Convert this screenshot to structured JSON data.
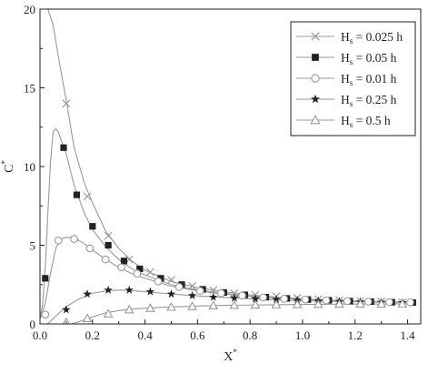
{
  "chart_data": {
    "type": "line",
    "xlabel": "X",
    "xlabel_sup": "*",
    "ylabel": "C",
    "ylabel_sup": "*",
    "xlim": [
      0.0,
      1.45
    ],
    "ylim": [
      0,
      20
    ],
    "xticks": [
      0.0,
      0.2,
      0.4,
      0.6,
      0.8,
      1.0,
      1.2,
      1.4
    ],
    "xtick_labels": [
      "0.0",
      "0.2",
      "0.4",
      "0.6",
      "0.8",
      "1.0",
      "1.2",
      "1.4"
    ],
    "yticks": [
      0,
      5,
      10,
      15,
      20
    ],
    "ytick_labels": [
      "0",
      "5",
      "10",
      "15",
      "20"
    ],
    "grid": false,
    "legend_position": "top-right",
    "line_color": "#999999",
    "marker_color": "#222222",
    "series": [
      {
        "name": "H",
        "name_sub": "s",
        "name_rest": " = 0.025 h",
        "marker": "x",
        "curve": [
          [
            0.0,
            20
          ],
          [
            0.03,
            20
          ],
          [
            0.05,
            19
          ],
          [
            0.075,
            16.5
          ],
          [
            0.1,
            14.2
          ],
          [
            0.13,
            11.2
          ],
          [
            0.17,
            8.9
          ],
          [
            0.2,
            7.7
          ],
          [
            0.25,
            5.9
          ],
          [
            0.3,
            4.8
          ],
          [
            0.35,
            4.0
          ],
          [
            0.4,
            3.4
          ],
          [
            0.5,
            2.7
          ],
          [
            0.6,
            2.3
          ],
          [
            0.7,
            2.05
          ],
          [
            0.8,
            1.85
          ],
          [
            0.9,
            1.7
          ],
          [
            1.0,
            1.6
          ],
          [
            1.1,
            1.52
          ],
          [
            1.2,
            1.46
          ],
          [
            1.3,
            1.41
          ],
          [
            1.42,
            1.37
          ]
        ],
        "markers": [
          [
            0.1,
            14.0
          ],
          [
            0.18,
            8.1
          ],
          [
            0.26,
            5.6
          ],
          [
            0.34,
            4.1
          ],
          [
            0.42,
            3.3
          ],
          [
            0.5,
            2.8
          ],
          [
            0.58,
            2.4
          ],
          [
            0.66,
            2.15
          ],
          [
            0.74,
            1.95
          ],
          [
            0.82,
            1.85
          ],
          [
            0.9,
            1.75
          ],
          [
            0.98,
            1.65
          ],
          [
            1.06,
            1.57
          ],
          [
            1.14,
            1.5
          ],
          [
            1.22,
            1.46
          ],
          [
            1.3,
            1.42
          ],
          [
            1.38,
            1.38
          ]
        ]
      },
      {
        "name": "H",
        "name_sub": "s",
        "name_rest": " = 0.05 h",
        "marker": "square",
        "curve": [
          [
            0.0,
            0.4
          ],
          [
            0.01,
            1.2
          ],
          [
            0.02,
            3.5
          ],
          [
            0.03,
            7.0
          ],
          [
            0.04,
            10.3
          ],
          [
            0.05,
            12.2
          ],
          [
            0.06,
            12.4
          ],
          [
            0.07,
            12.2
          ],
          [
            0.08,
            11.7
          ],
          [
            0.1,
            10.8
          ],
          [
            0.13,
            8.8
          ],
          [
            0.17,
            7.0
          ],
          [
            0.2,
            6.0
          ],
          [
            0.25,
            4.9
          ],
          [
            0.3,
            4.1
          ],
          [
            0.35,
            3.5
          ],
          [
            0.4,
            3.1
          ],
          [
            0.5,
            2.5
          ],
          [
            0.6,
            2.15
          ],
          [
            0.7,
            1.95
          ],
          [
            0.8,
            1.78
          ],
          [
            0.9,
            1.68
          ],
          [
            1.0,
            1.58
          ],
          [
            1.1,
            1.5
          ],
          [
            1.2,
            1.45
          ],
          [
            1.3,
            1.4
          ],
          [
            1.42,
            1.36
          ]
        ],
        "markers": [
          [
            0.02,
            2.9
          ],
          [
            0.09,
            11.2
          ],
          [
            0.14,
            8.2
          ],
          [
            0.2,
            6.2
          ],
          [
            0.26,
            5.0
          ],
          [
            0.32,
            4.0
          ],
          [
            0.38,
            3.5
          ],
          [
            0.46,
            2.9
          ],
          [
            0.54,
            2.5
          ],
          [
            0.62,
            2.2
          ],
          [
            0.7,
            2.0
          ],
          [
            0.78,
            1.85
          ],
          [
            0.86,
            1.7
          ],
          [
            0.94,
            1.62
          ],
          [
            1.02,
            1.55
          ],
          [
            1.1,
            1.5
          ],
          [
            1.18,
            1.45
          ],
          [
            1.26,
            1.42
          ],
          [
            1.34,
            1.38
          ],
          [
            1.42,
            1.36
          ]
        ]
      },
      {
        "name": "H",
        "name_sub": "s",
        "name_rest": " = 0.01 h",
        "marker": "circle",
        "curve": [
          [
            0.0,
            0.3
          ],
          [
            0.02,
            1.3
          ],
          [
            0.04,
            3.2
          ],
          [
            0.06,
            4.8
          ],
          [
            0.08,
            5.4
          ],
          [
            0.1,
            5.5
          ],
          [
            0.13,
            5.45
          ],
          [
            0.16,
            5.2
          ],
          [
            0.2,
            4.7
          ],
          [
            0.25,
            4.1
          ],
          [
            0.3,
            3.6
          ],
          [
            0.35,
            3.2
          ],
          [
            0.4,
            2.9
          ],
          [
            0.5,
            2.4
          ],
          [
            0.6,
            2.1
          ],
          [
            0.7,
            1.9
          ],
          [
            0.8,
            1.75
          ],
          [
            0.9,
            1.65
          ],
          [
            1.0,
            1.57
          ],
          [
            1.1,
            1.5
          ],
          [
            1.2,
            1.45
          ],
          [
            1.3,
            1.4
          ],
          [
            1.42,
            1.36
          ]
        ],
        "markers": [
          [
            0.02,
            0.6
          ],
          [
            0.07,
            5.3
          ],
          [
            0.13,
            5.4
          ],
          [
            0.19,
            4.8
          ],
          [
            0.25,
            4.1
          ],
          [
            0.31,
            3.6
          ],
          [
            0.37,
            3.2
          ],
          [
            0.45,
            2.7
          ],
          [
            0.53,
            2.35
          ],
          [
            0.61,
            2.1
          ],
          [
            0.69,
            1.95
          ],
          [
            0.77,
            1.8
          ],
          [
            0.85,
            1.68
          ],
          [
            0.93,
            1.6
          ],
          [
            1.01,
            1.55
          ],
          [
            1.09,
            1.5
          ],
          [
            1.17,
            1.45
          ],
          [
            1.25,
            1.42
          ],
          [
            1.33,
            1.39
          ],
          [
            1.41,
            1.37
          ]
        ]
      },
      {
        "name": "H",
        "name_sub": "s",
        "name_rest": " = 0.25 h",
        "marker": "star",
        "curve": [
          [
            0.03,
            0.0
          ],
          [
            0.06,
            0.5
          ],
          [
            0.1,
            1.1
          ],
          [
            0.15,
            1.6
          ],
          [
            0.2,
            1.95
          ],
          [
            0.25,
            2.1
          ],
          [
            0.3,
            2.15
          ],
          [
            0.35,
            2.12
          ],
          [
            0.4,
            2.05
          ],
          [
            0.5,
            1.9
          ],
          [
            0.6,
            1.78
          ],
          [
            0.7,
            1.68
          ],
          [
            0.8,
            1.6
          ],
          [
            0.9,
            1.53
          ],
          [
            1.0,
            1.48
          ],
          [
            1.1,
            1.44
          ],
          [
            1.2,
            1.41
          ],
          [
            1.3,
            1.38
          ],
          [
            1.42,
            1.35
          ]
        ],
        "markers": [
          [
            0.1,
            0.9
          ],
          [
            0.18,
            1.9
          ],
          [
            0.26,
            2.15
          ],
          [
            0.34,
            2.15
          ],
          [
            0.42,
            2.05
          ],
          [
            0.5,
            1.9
          ],
          [
            0.58,
            1.8
          ],
          [
            0.66,
            1.7
          ],
          [
            0.74,
            1.65
          ],
          [
            0.82,
            1.6
          ],
          [
            0.9,
            1.55
          ],
          [
            0.98,
            1.5
          ],
          [
            1.06,
            1.46
          ],
          [
            1.14,
            1.43
          ],
          [
            1.22,
            1.4
          ],
          [
            1.3,
            1.38
          ],
          [
            1.38,
            1.36
          ]
        ]
      },
      {
        "name": "H",
        "name_sub": "s",
        "name_rest": " = 0.5 h",
        "marker": "triangle",
        "curve": [
          [
            0.12,
            0.0
          ],
          [
            0.15,
            0.15
          ],
          [
            0.2,
            0.45
          ],
          [
            0.25,
            0.7
          ],
          [
            0.3,
            0.85
          ],
          [
            0.35,
            0.95
          ],
          [
            0.4,
            1.0
          ],
          [
            0.5,
            1.08
          ],
          [
            0.6,
            1.14
          ],
          [
            0.7,
            1.18
          ],
          [
            0.8,
            1.2
          ],
          [
            0.9,
            1.22
          ],
          [
            1.0,
            1.24
          ],
          [
            1.1,
            1.25
          ],
          [
            1.2,
            1.26
          ],
          [
            1.3,
            1.27
          ],
          [
            1.42,
            1.28
          ]
        ],
        "markers": [
          [
            0.1,
            0.1
          ],
          [
            0.18,
            0.35
          ],
          [
            0.26,
            0.65
          ],
          [
            0.34,
            0.9
          ],
          [
            0.42,
            1.0
          ],
          [
            0.5,
            1.07
          ],
          [
            0.58,
            1.12
          ],
          [
            0.66,
            1.16
          ],
          [
            0.74,
            1.19
          ],
          [
            0.82,
            1.21
          ],
          [
            0.9,
            1.23
          ],
          [
            0.98,
            1.24
          ],
          [
            1.06,
            1.25
          ],
          [
            1.14,
            1.26
          ],
          [
            1.22,
            1.27
          ],
          [
            1.3,
            1.27
          ],
          [
            1.38,
            1.28
          ]
        ]
      }
    ]
  }
}
